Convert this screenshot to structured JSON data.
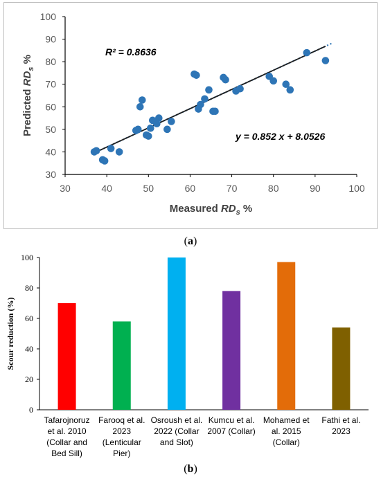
{
  "captions": {
    "a": "a",
    "b": "b"
  },
  "chart_data": [
    {
      "type": "scatter",
      "xlabel": "Measured RDs %",
      "ylabel": "Predicted RDs %",
      "xlabel_main": "Measured ",
      "xlabel_sub": "s",
      "xlabel_tail": " %",
      "ylabel_main": "Predicted ",
      "ylabel_sub": "s",
      "ylabel_tail": " %",
      "rd_text": "RD",
      "xlim": [
        30,
        100
      ],
      "ylim": [
        30,
        100
      ],
      "x_ticks": [
        30,
        40,
        50,
        60,
        70,
        80,
        90,
        100
      ],
      "y_ticks": [
        30,
        40,
        50,
        60,
        70,
        80,
        90,
        100
      ],
      "grid": false,
      "r2_label": "R² = 0.8636",
      "equation_label": "y = 0.852 x + 8.0526",
      "trendline": {
        "slope": 0.852,
        "intercept": 8.0526,
        "x_range": [
          37,
          94
        ]
      },
      "colors": {
        "points": "#2e75b6",
        "trendline": "#1f1f1f",
        "trend_dotted": "#2e75b6"
      },
      "points": [
        [
          37,
          40
        ],
        [
          37.5,
          40.5
        ],
        [
          39,
          36.5
        ],
        [
          39.5,
          36
        ],
        [
          41,
          41.5
        ],
        [
          43,
          40
        ],
        [
          47,
          49.5
        ],
        [
          47.5,
          50
        ],
        [
          48,
          60
        ],
        [
          48.5,
          63
        ],
        [
          49.5,
          47.5
        ],
        [
          50,
          47
        ],
        [
          50.5,
          50.5
        ],
        [
          51,
          54
        ],
        [
          52,
          52.5
        ],
        [
          52.5,
          55
        ],
        [
          54.5,
          50
        ],
        [
          55.5,
          53.5
        ],
        [
          61,
          74.5
        ],
        [
          61.5,
          74
        ],
        [
          62,
          59
        ],
        [
          62.5,
          61
        ],
        [
          63.5,
          63.5
        ],
        [
          64.5,
          67.5
        ],
        [
          65.5,
          58
        ],
        [
          66,
          58
        ],
        [
          68,
          73
        ],
        [
          68.5,
          72
        ],
        [
          71,
          67
        ],
        [
          72,
          68
        ],
        [
          79,
          73.5
        ],
        [
          80,
          71.5
        ],
        [
          83,
          70
        ],
        [
          84,
          67.5
        ],
        [
          88,
          84
        ],
        [
          92.5,
          80.5
        ]
      ]
    },
    {
      "type": "bar",
      "ylabel": "Scour reduction (%)",
      "ylim": [
        0,
        100
      ],
      "y_ticks": [
        0,
        20,
        40,
        60,
        80,
        100
      ],
      "grid": false,
      "categories": [
        [
          "Tafarojnoruz",
          "et al. 2010",
          "(Collar and",
          "Bed Sill)"
        ],
        [
          "Farooq et al.",
          "2023",
          "(Lenticular",
          "Pier)"
        ],
        [
          "Osroush et al.",
          "2022 (Collar",
          "and Slot)"
        ],
        [
          "Kumcu et al.",
          "2007 (Collar)"
        ],
        [
          "Mohamed et",
          "al. 2015",
          "(Collar)"
        ],
        [
          "Fathi et al.",
          "2023"
        ]
      ],
      "values": [
        70,
        58,
        100,
        78,
        97,
        54
      ],
      "colors": [
        "#ff0000",
        "#00b050",
        "#00b0f0",
        "#7030a0",
        "#e36c09",
        "#7f6000"
      ]
    }
  ]
}
